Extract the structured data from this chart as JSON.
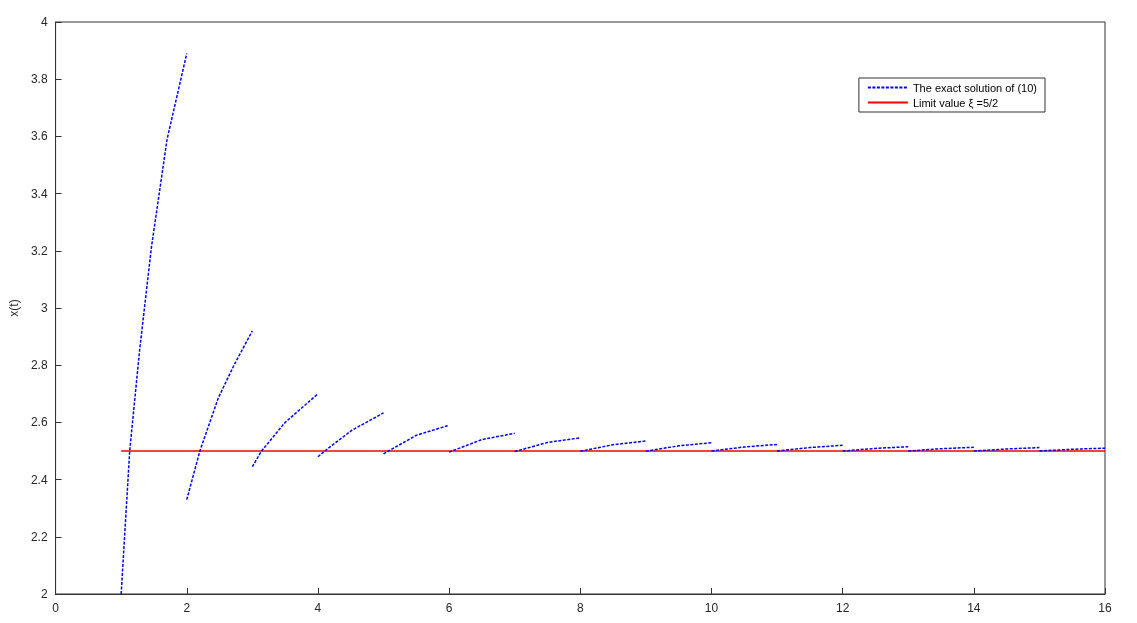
{
  "chart_data": {
    "type": "line",
    "ylabel": "x(t)",
    "xlim": [
      0,
      16
    ],
    "xticks": [
      0,
      2,
      4,
      6,
      8,
      10,
      12,
      14,
      16
    ],
    "ylim": [
      2,
      4
    ],
    "yticks": [
      2,
      2.2,
      2.4,
      2.6,
      2.8,
      3,
      3.2,
      3.4,
      3.6,
      3.8,
      4
    ],
    "grid": false,
    "legend": "top right",
    "marker": "none",
    "series": [
      {
        "name": "The exact solution of (10)",
        "color": "#0000ff",
        "line_style": "dashed",
        "x": [
          1,
          1.13,
          1.28,
          1.46,
          1.7,
          2
        ],
        "values": [
          2.0,
          2.5,
          2.85,
          3.21,
          3.59,
          3.89
        ]
      },
      {
        "color": "#0000ff",
        "line_style": "dashed",
        "x": [
          2,
          2.2,
          2.48,
          2.72,
          3
        ],
        "values": [
          2.33,
          2.5,
          2.685,
          2.8,
          2.92
        ]
      },
      {
        "color": "#0000ff",
        "line_style": "dashed",
        "x": [
          3,
          3.14,
          3.5,
          4
        ],
        "values": [
          2.445,
          2.5,
          2.6,
          2.7
        ]
      },
      {
        "color": "#0000ff",
        "line_style": "dashed",
        "x": [
          4,
          4.16,
          4.52,
          5
        ],
        "values": [
          2.48,
          2.51,
          2.573,
          2.633
        ]
      },
      {
        "color": "#0000ff",
        "line_style": "dashed",
        "x": [
          5,
          5.5,
          6
        ],
        "values": [
          2.49,
          2.555,
          2.59
        ]
      },
      {
        "color": "#0000ff",
        "line_style": "dashed",
        "x": [
          6,
          6.5,
          7
        ],
        "values": [
          2.496,
          2.54,
          2.562
        ]
      },
      {
        "color": "#0000ff",
        "line_style": "dashed",
        "x": [
          7,
          7.5,
          8
        ],
        "values": [
          2.498,
          2.53,
          2.546
        ]
      },
      {
        "color": "#0000ff",
        "line_style": "dashed",
        "x": [
          8,
          8.5,
          9
        ],
        "values": [
          2.499,
          2.522,
          2.535
        ]
      },
      {
        "color": "#0000ff",
        "line_style": "dashed",
        "x": [
          9,
          9.5,
          10
        ],
        "values": [
          2.499,
          2.518,
          2.529
        ]
      },
      {
        "color": "#0000ff",
        "line_style": "dashed",
        "x": [
          10,
          10.5,
          11
        ],
        "values": [
          2.5,
          2.514,
          2.523
        ]
      },
      {
        "color": "#0000ff",
        "line_style": "dashed",
        "x": [
          11,
          11.5,
          12
        ],
        "values": [
          2.5,
          2.512,
          2.52
        ]
      },
      {
        "color": "#0000ff",
        "line_style": "dashed",
        "x": [
          12,
          12.5,
          13
        ],
        "values": [
          2.5,
          2.509,
          2.515
        ]
      },
      {
        "color": "#0000ff",
        "line_style": "dashed",
        "x": [
          13,
          13.5,
          14
        ],
        "values": [
          2.5,
          2.508,
          2.513
        ]
      },
      {
        "color": "#0000ff",
        "line_style": "dashed",
        "x": [
          14,
          14.5,
          15
        ],
        "values": [
          2.5,
          2.507,
          2.512
        ]
      },
      {
        "color": "#0000ff",
        "line_style": "dashed",
        "x": [
          15,
          15.5,
          16
        ],
        "values": [
          2.5,
          2.506,
          2.51
        ]
      },
      {
        "name": "Limit value ξ =5/2",
        "color": "#ff0000",
        "line_style": "solid",
        "x": [
          1,
          16
        ],
        "values": [
          2.5,
          2.5
        ]
      }
    ]
  }
}
